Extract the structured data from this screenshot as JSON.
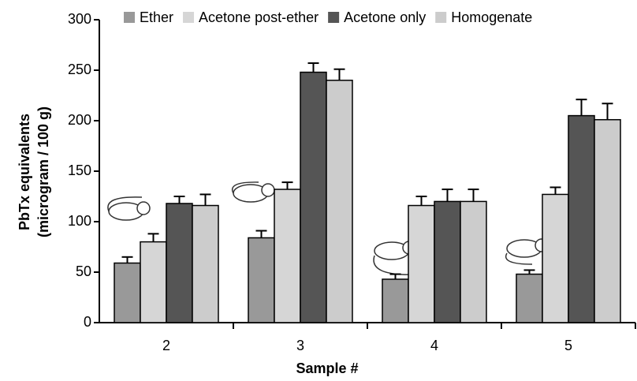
{
  "chart_data": {
    "type": "bar",
    "x_label": "Sample #",
    "y_label": [
      "PbTx equivalents",
      "(microgram / 100 g)"
    ],
    "categories": [
      "2",
      "3",
      "4",
      "5"
    ],
    "series": [
      {
        "name": "Ether",
        "color": "#999999",
        "values": [
          59,
          84,
          43,
          48
        ],
        "errors": [
          6,
          7,
          5,
          4
        ]
      },
      {
        "name": "Acetone post-ether",
        "color": "#d6d6d6",
        "values": [
          80,
          132,
          116,
          127
        ],
        "errors": [
          8,
          7,
          9,
          7
        ]
      },
      {
        "name": "Acetone only",
        "color": "#555555",
        "values": [
          118,
          248,
          120,
          205
        ],
        "errors": [
          7,
          9,
          12,
          16
        ]
      },
      {
        "name": "Homogenate",
        "color": "#cccccc",
        "values": [
          116,
          240,
          120,
          201
        ],
        "errors": [
          11,
          11,
          12,
          16
        ]
      }
    ],
    "ylim": [
      0,
      300
    ],
    "yticks": [
      0,
      50,
      100,
      150,
      200,
      250,
      300
    ],
    "grid": false
  }
}
